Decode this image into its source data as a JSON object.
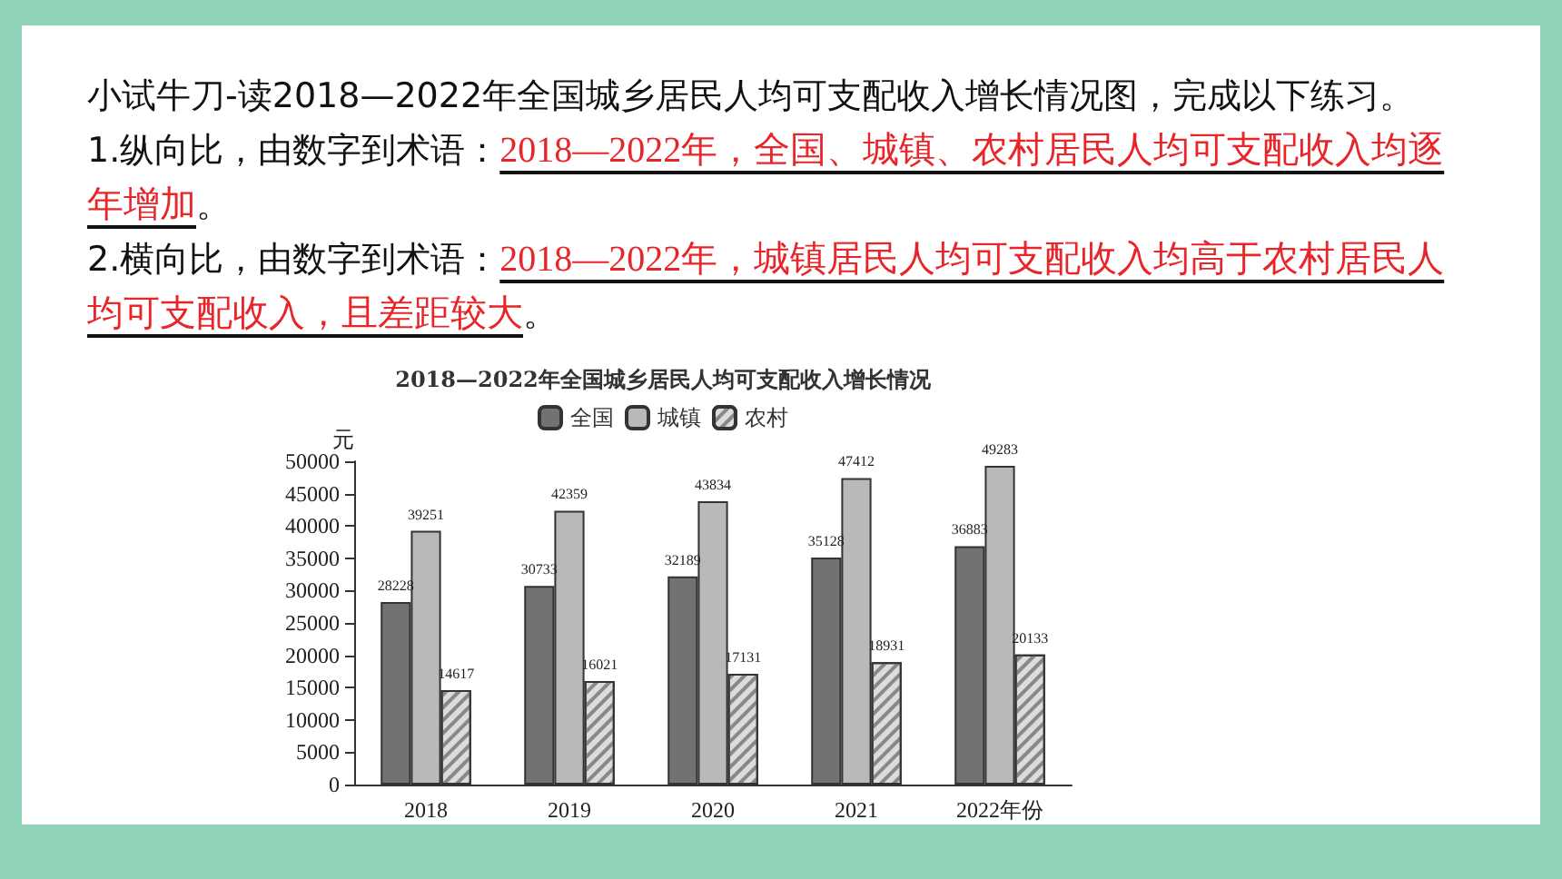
{
  "chart_data": {
    "type": "bar",
    "title": "2018—2022年全国城乡居民人均可支配收入增长情况",
    "ylabel": "元",
    "annotations": [
      "小试牛刀-读2018—2022年全国城乡居民人均可支配收入增长情况图，完成以下练习。",
      "1.纵向比，由数字到术语：",
      "2018—2022年，全国、城镇、农村居民人均可支配收入均逐年增加",
      "。",
      "2.横向比，由数字到术语：",
      "2018—2022年，城镇居民人均可支配收入均高于农村居民人均可支配收入，且差距较大",
      "。"
    ],
    "categories": [
      "2018",
      "2019",
      "2020",
      "2021",
      "2022年份"
    ],
    "series": [
      {
        "name": "全国",
        "color": "#727274",
        "values": [
          28228,
          30733,
          32189,
          35128,
          36883
        ]
      },
      {
        "name": "城镇",
        "color": "#b9b9bb",
        "values": [
          39251,
          42359,
          43834,
          47412,
          49283
        ]
      },
      {
        "name": "农村",
        "color": "#dcdcdc",
        "values": [
          14617,
          16021,
          17131,
          18931,
          20133
        ]
      }
    ],
    "ylim": [
      0,
      50000
    ],
    "yticks": [
      0,
      5000,
      10000,
      15000,
      20000,
      25000,
      30000,
      35000,
      40000,
      45000,
      50000
    ],
    "data_labels": true,
    "legend": "top",
    "grid": false
  }
}
